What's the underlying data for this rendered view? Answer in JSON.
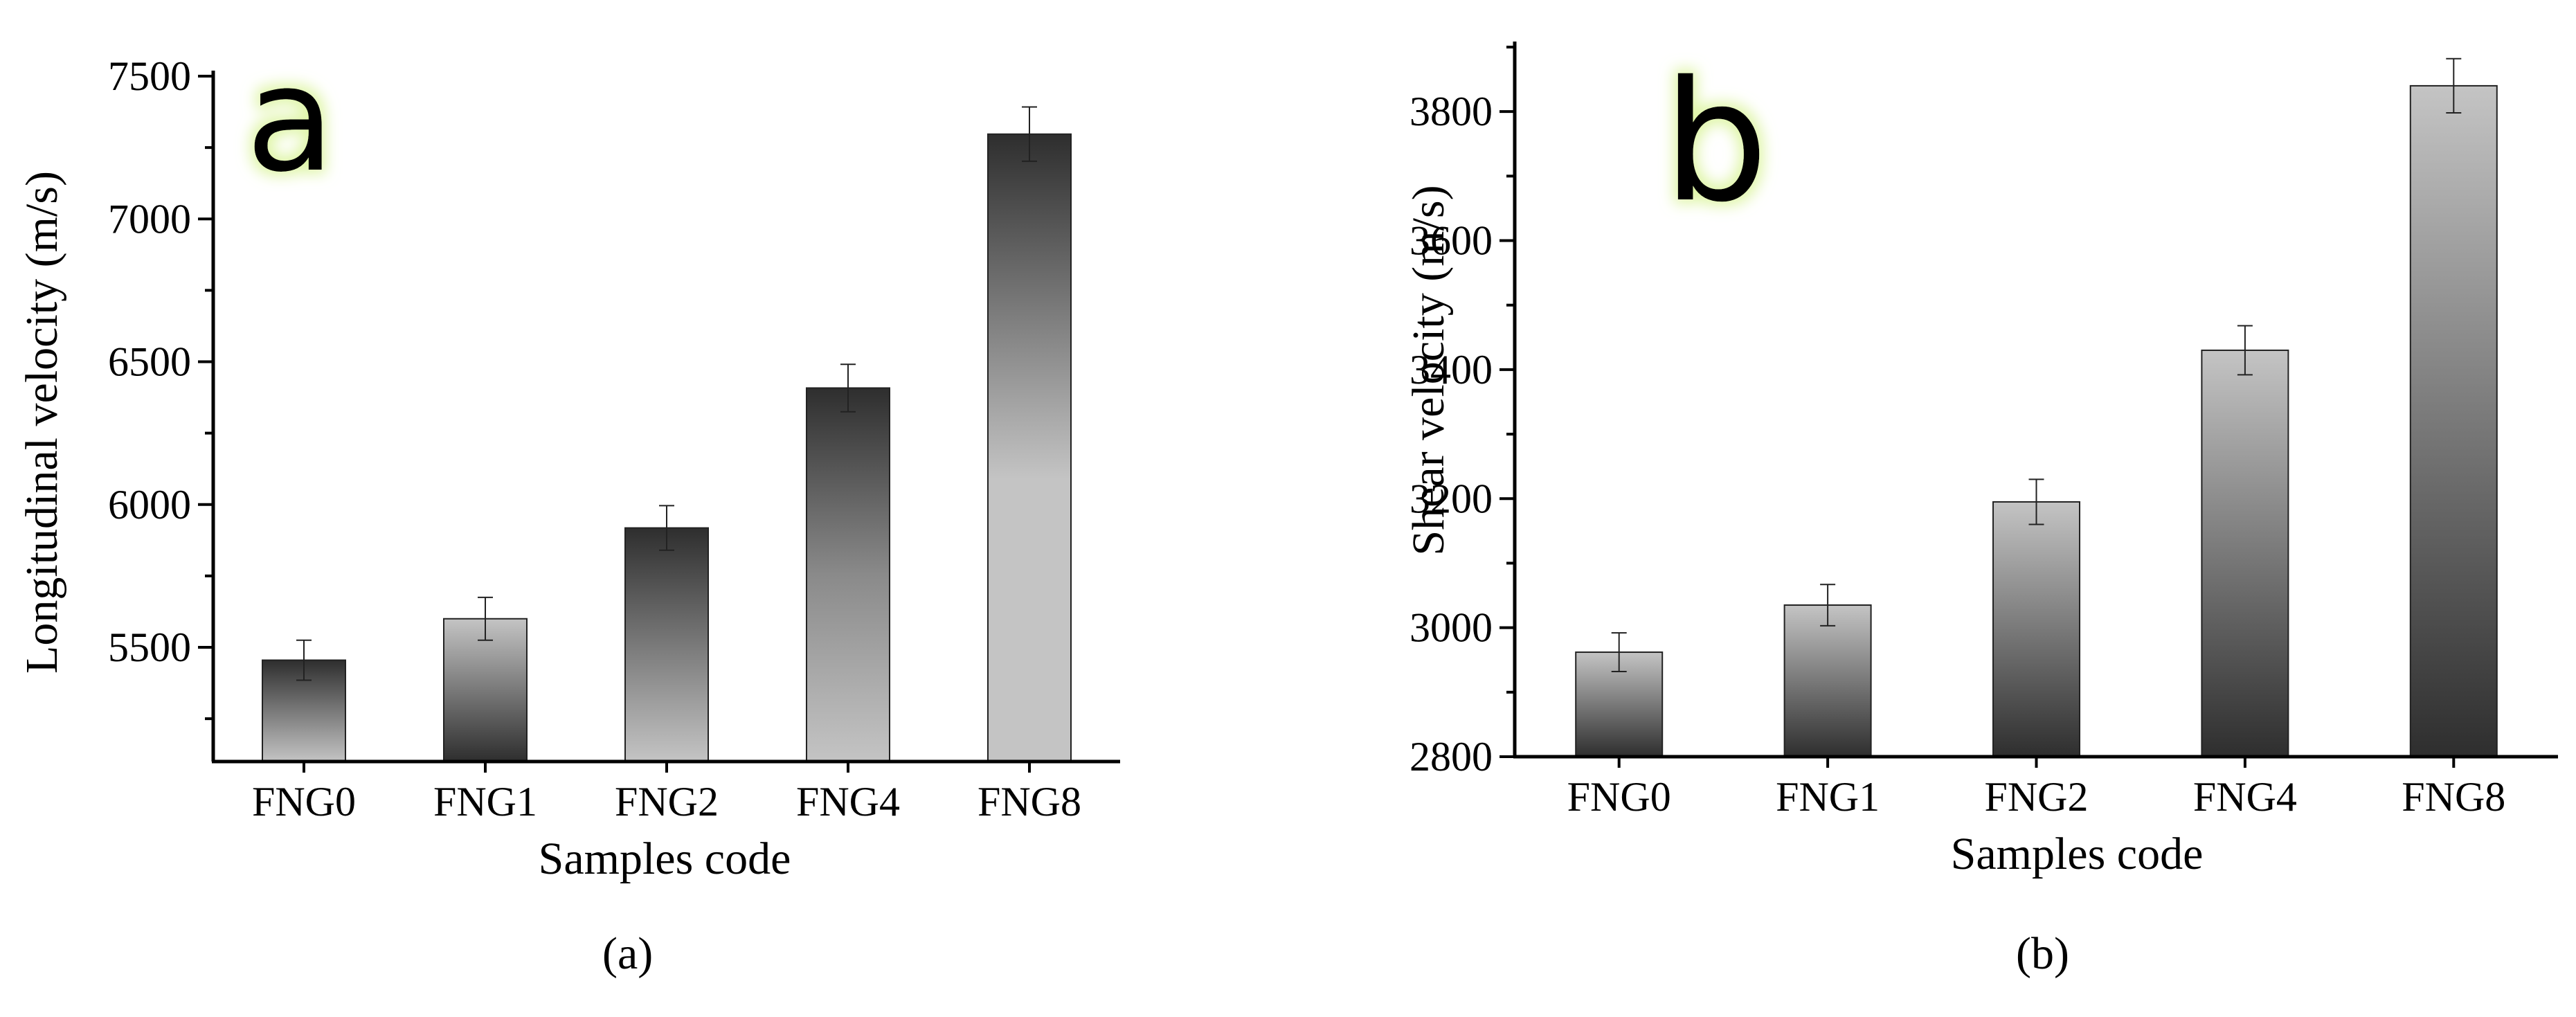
{
  "chart_data": [
    {
      "type": "bar",
      "panel_label": "a",
      "caption": "(a)",
      "categories": [
        "FNG0",
        "FNG1",
        "FNG2",
        "FNG4",
        "FNG8"
      ],
      "values": [
        5455,
        5600,
        5918,
        6408,
        7297
      ],
      "errors": [
        70,
        75,
        78,
        83,
        95
      ],
      "xlabel": "Samples code",
      "ylabel": "Longitudinal velocity (m/s)",
      "ylim": [
        5100,
        7500
      ],
      "yticks": [
        5500,
        6000,
        6500,
        7000,
        7500
      ],
      "bar_colors_dark": "#2e2e2e",
      "bar_colors_light": "#c4c4c4",
      "grid": false
    },
    {
      "type": "bar",
      "panel_label": "b",
      "caption": "(b)",
      "categories": [
        "FNG0",
        "FNG1",
        "FNG2",
        "FNG4",
        "FNG8"
      ],
      "values": [
        2962,
        3035,
        3195,
        3430,
        3840
      ],
      "errors": [
        30,
        32,
        35,
        38,
        42
      ],
      "xlabel": "Samples code",
      "ylabel": "Shear velocity (m/s)",
      "ylim": [
        2800,
        3900
      ],
      "yticks": [
        2800,
        3000,
        3200,
        3400,
        3600,
        3800
      ],
      "bar_colors_dark": "#2e2e2e",
      "bar_colors_light": "#c4c4c4",
      "grid": false
    }
  ],
  "glow_color": "#dff5a8"
}
